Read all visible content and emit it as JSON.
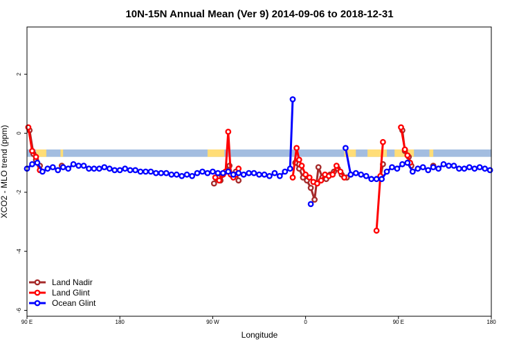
{
  "chart_data": {
    "type": "line",
    "title": "10N-15N Annual Mean (Ver 9)   2014-09-06 to 2018-12-31",
    "xlabel": "Longitude",
    "ylabel": "XCO2 - MLO trend (ppm)",
    "xlim": [
      -90,
      270
    ],
    "ylim": [
      -6.2,
      3.6
    ],
    "x_ticks": [
      {
        "value": -90,
        "label": "90 E"
      },
      {
        "value": -18,
        "label": "180"
      },
      {
        "value": 54,
        "label": "90 W"
      },
      {
        "value": 126,
        "label": "0"
      },
      {
        "value": 198,
        "label": "90 E"
      },
      {
        "value": 270,
        "label": "180"
      }
    ],
    "y_ticks": [
      {
        "value": 2,
        "label": "2"
      },
      {
        "value": 0,
        "label": "0"
      },
      {
        "value": -2,
        "label": "-2"
      },
      {
        "value": -4,
        "label": "-4"
      },
      {
        "value": -6,
        "label": "-6"
      }
    ],
    "legend_position": "bottom-left",
    "series": [
      {
        "name": "Land Nadir",
        "color": "#a52a2a",
        "segments": [
          [
            [
              -88,
              0.1
            ],
            [
              -85,
              -0.7
            ],
            [
              -83,
              -0.9
            ],
            [
              -80,
              -1.1
            ]
          ],
          [
            [
              -63,
              -1.1
            ]
          ],
          [
            [
              55,
              -1.7
            ],
            [
              58,
              -1.5
            ],
            [
              60,
              -1.6
            ],
            [
              64,
              -1.3
            ],
            [
              67,
              -1.1
            ],
            [
              69,
              -1.4
            ],
            [
              72,
              -1.3
            ],
            [
              74,
              -1.6
            ]
          ],
          [
            [
              118,
              -1.0
            ],
            [
              121,
              -1.2
            ],
            [
              124,
              -1.5
            ],
            [
              127,
              -1.6
            ],
            [
              130,
              -1.85
            ],
            [
              133,
              -2.25
            ],
            [
              136,
              -1.15
            ],
            [
              139,
              -1.5
            ],
            [
              142,
              -1.55
            ],
            [
              145,
              -1.4
            ],
            [
              148,
              -1.3
            ],
            [
              151,
              -1.2
            ],
            [
              154,
              -1.4
            ],
            [
              158,
              -1.5
            ]
          ],
          [
            [
              184,
              -1.5
            ],
            [
              186,
              -1.05
            ]
          ],
          [
            [
              201,
              0.1
            ],
            [
              203,
              -0.6
            ],
            [
              206,
              -0.8
            ],
            [
              208,
              -1.1
            ]
          ],
          [
            [
              225,
              -1.1
            ]
          ]
        ]
      },
      {
        "name": "Land Glint",
        "color": "#ff0000",
        "segments": [
          [
            [
              -89,
              0.2
            ],
            [
              -86,
              -0.6
            ],
            [
              -83,
              -0.8
            ],
            [
              -80,
              -1.25
            ]
          ],
          [
            [
              56,
              -1.5
            ],
            [
              59,
              -1.6
            ],
            [
              62,
              -1.4
            ],
            [
              64,
              -1.3
            ],
            [
              66,
              0.05
            ],
            [
              68,
              -1.4
            ],
            [
              70,
              -1.5
            ],
            [
              72,
              -1.4
            ],
            [
              74,
              -1.2
            ]
          ],
          [
            [
              116,
              -1.5
            ],
            [
              119,
              -0.5
            ],
            [
              121,
              -0.9
            ],
            [
              123,
              -1.1
            ],
            [
              126,
              -1.4
            ],
            [
              129,
              -1.5
            ],
            [
              132,
              -1.65
            ],
            [
              135,
              -1.7
            ],
            [
              138,
              -1.6
            ],
            [
              141,
              -1.4
            ],
            [
              144,
              -1.45
            ],
            [
              147,
              -1.4
            ],
            [
              150,
              -1.1
            ],
            [
              153,
              -1.3
            ],
            [
              156,
              -1.5
            ]
          ],
          [
            [
              181,
              -3.3
            ],
            [
              184,
              -1.45
            ],
            [
              186,
              -0.3
            ]
          ],
          [
            [
              200,
              0.2
            ],
            [
              203,
              -0.55
            ],
            [
              205,
              -0.75
            ],
            [
              207,
              -1.0
            ]
          ]
        ]
      },
      {
        "name": "Ocean Glint",
        "color": "#0000ff",
        "segments": [
          [
            [
              -90,
              -1.2
            ],
            [
              -86,
              -1.05
            ],
            [
              -82,
              -1.0
            ],
            [
              -78,
              -1.3
            ],
            [
              -74,
              -1.2
            ],
            [
              -70,
              -1.15
            ],
            [
              -66,
              -1.25
            ],
            [
              -62,
              -1.15
            ],
            [
              -58,
              -1.2
            ],
            [
              -54,
              -1.05
            ],
            [
              -50,
              -1.1
            ],
            [
              -46,
              -1.1
            ],
            [
              -42,
              -1.2
            ],
            [
              -38,
              -1.2
            ],
            [
              -34,
              -1.2
            ],
            [
              -30,
              -1.15
            ],
            [
              -26,
              -1.2
            ],
            [
              -22,
              -1.25
            ],
            [
              -18,
              -1.25
            ],
            [
              -14,
              -1.2
            ],
            [
              -10,
              -1.25
            ],
            [
              -6,
              -1.25
            ],
            [
              -2,
              -1.3
            ],
            [
              2,
              -1.3
            ],
            [
              6,
              -1.3
            ],
            [
              10,
              -1.35
            ],
            [
              14,
              -1.35
            ],
            [
              18,
              -1.35
            ],
            [
              22,
              -1.4
            ],
            [
              26,
              -1.4
            ],
            [
              30,
              -1.45
            ],
            [
              34,
              -1.4
            ],
            [
              38,
              -1.45
            ],
            [
              42,
              -1.35
            ],
            [
              46,
              -1.3
            ],
            [
              50,
              -1.35
            ],
            [
              54,
              -1.3
            ],
            [
              58,
              -1.35
            ],
            [
              62,
              -1.35
            ],
            [
              66,
              -1.3
            ],
            [
              70,
              -1.4
            ],
            [
              74,
              -1.35
            ],
            [
              78,
              -1.4
            ],
            [
              82,
              -1.35
            ],
            [
              86,
              -1.35
            ],
            [
              90,
              -1.4
            ],
            [
              94,
              -1.4
            ],
            [
              98,
              -1.45
            ],
            [
              102,
              -1.35
            ],
            [
              106,
              -1.45
            ],
            [
              110,
              -1.3
            ],
            [
              114,
              -1.2
            ],
            [
              116,
              1.15
            ]
          ],
          [
            [
              130,
              -2.4
            ]
          ],
          [
            [
              157,
              -0.5
            ],
            [
              161,
              -1.4
            ],
            [
              165,
              -1.35
            ],
            [
              169,
              -1.4
            ],
            [
              173,
              -1.45
            ],
            [
              177,
              -1.55
            ],
            [
              181,
              -1.55
            ],
            [
              185,
              -1.55
            ],
            [
              189,
              -1.3
            ],
            [
              193,
              -1.15
            ],
            [
              197,
              -1.2
            ],
            [
              201,
              -1.05
            ],
            [
              205,
              -1.0
            ],
            [
              209,
              -1.3
            ],
            [
              213,
              -1.2
            ],
            [
              217,
              -1.15
            ],
            [
              221,
              -1.25
            ],
            [
              225,
              -1.15
            ],
            [
              229,
              -1.2
            ],
            [
              233,
              -1.05
            ],
            [
              237,
              -1.1
            ],
            [
              241,
              -1.1
            ],
            [
              245,
              -1.2
            ],
            [
              249,
              -1.2
            ],
            [
              253,
              -1.15
            ],
            [
              257,
              -1.2
            ],
            [
              261,
              -1.15
            ],
            [
              265,
              -1.2
            ],
            [
              269,
              -1.25
            ]
          ]
        ]
      }
    ]
  },
  "land_strip": {
    "y_top": -0.55,
    "y_bottom": -0.8,
    "ocean_color": "#a3bde0",
    "land_color": "#ffdd77",
    "land_ranges": [
      [
        -83,
        -75
      ],
      [
        -64,
        -62
      ],
      [
        50,
        63
      ],
      [
        156,
        165
      ],
      [
        174,
        189
      ],
      [
        195,
        210
      ],
      [
        222,
        225
      ]
    ]
  }
}
